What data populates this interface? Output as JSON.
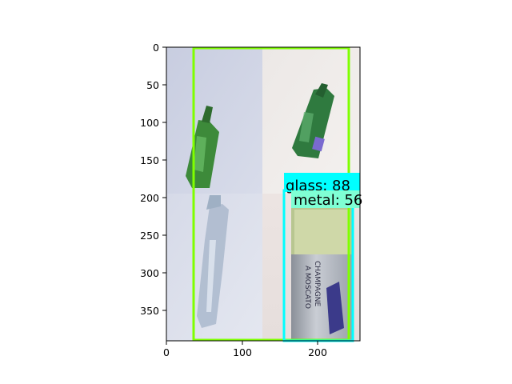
{
  "image": {
    "description_tiles": [
      "green bottle on blue-white cloth",
      "green bottle with purple cap on white",
      "clear plastic bottle on white",
      "silver-labelled moscato bottle"
    ],
    "bottle_label_text": "...A MOSCATO CHAMPAGNE..."
  },
  "axes": {
    "x_ticks": [
      "0",
      "100",
      "200"
    ],
    "y_ticks": [
      "0",
      "50",
      "100",
      "150",
      "200",
      "250",
      "300",
      "350"
    ]
  },
  "detections": [
    {
      "label": "glass: 88",
      "color": "#00ffff"
    },
    {
      "label": "metal: 56",
      "color": "#7fffd4"
    }
  ],
  "colors": {
    "outer_box": "#7fff00",
    "glass_box": "#00ffff",
    "metal_label_bg": "#7fffd4"
  }
}
